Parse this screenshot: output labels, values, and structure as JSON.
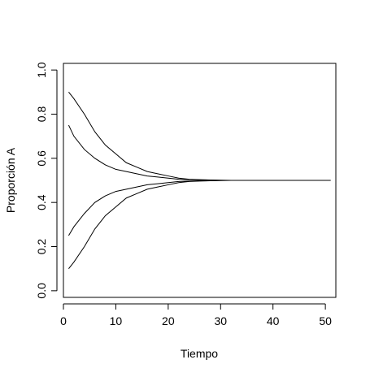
{
  "chart_data": {
    "type": "line",
    "title": "",
    "xlabel": "Tiempo",
    "ylabel": "Proporción A",
    "xlim": [
      0,
      52
    ],
    "ylim": [
      -0.03,
      1.03
    ],
    "x_ticks": [
      0,
      10,
      20,
      30,
      40,
      50
    ],
    "x_tick_labels": [
      "0",
      "10",
      "20",
      "30",
      "40",
      "50"
    ],
    "y_ticks": [
      0.0,
      0.2,
      0.4,
      0.6,
      0.8,
      1.0
    ],
    "y_tick_labels": [
      "0.0",
      "0.2",
      "0.4",
      "0.6",
      "0.8",
      "1.0"
    ],
    "grid": false,
    "legend": "none",
    "line_color": "#000000",
    "series": [
      {
        "x": [
          1,
          2,
          4,
          6,
          8,
          10,
          12,
          14,
          16,
          18,
          20,
          22,
          24,
          26,
          28,
          30,
          32,
          35,
          40,
          45,
          51
        ],
        "values": [
          0.9,
          0.87,
          0.8,
          0.72,
          0.66,
          0.62,
          0.58,
          0.56,
          0.54,
          0.53,
          0.52,
          0.51,
          0.505,
          0.503,
          0.502,
          0.501,
          0.5,
          0.5,
          0.5,
          0.5,
          0.5
        ]
      },
      {
        "x": [
          1,
          2,
          4,
          6,
          8,
          10,
          12,
          14,
          16,
          18,
          20,
          22,
          24,
          26,
          28,
          30,
          32,
          35,
          40,
          45,
          51
        ],
        "values": [
          0.75,
          0.7,
          0.64,
          0.6,
          0.57,
          0.55,
          0.54,
          0.53,
          0.52,
          0.515,
          0.51,
          0.505,
          0.503,
          0.502,
          0.501,
          0.5,
          0.5,
          0.5,
          0.5,
          0.5,
          0.5
        ]
      },
      {
        "x": [
          1,
          2,
          4,
          6,
          8,
          10,
          12,
          14,
          16,
          18,
          20,
          22,
          24,
          26,
          28,
          30,
          32,
          35,
          40,
          45,
          51
        ],
        "values": [
          0.25,
          0.29,
          0.35,
          0.4,
          0.43,
          0.45,
          0.46,
          0.47,
          0.48,
          0.485,
          0.49,
          0.495,
          0.497,
          0.498,
          0.499,
          0.5,
          0.5,
          0.5,
          0.5,
          0.5,
          0.5
        ]
      },
      {
        "x": [
          1,
          2,
          4,
          6,
          8,
          10,
          12,
          14,
          16,
          18,
          20,
          22,
          24,
          26,
          28,
          30,
          32,
          35,
          40,
          45,
          51
        ],
        "values": [
          0.1,
          0.13,
          0.2,
          0.28,
          0.34,
          0.38,
          0.42,
          0.44,
          0.46,
          0.47,
          0.48,
          0.49,
          0.495,
          0.497,
          0.498,
          0.499,
          0.5,
          0.5,
          0.5,
          0.5,
          0.5
        ]
      }
    ]
  }
}
